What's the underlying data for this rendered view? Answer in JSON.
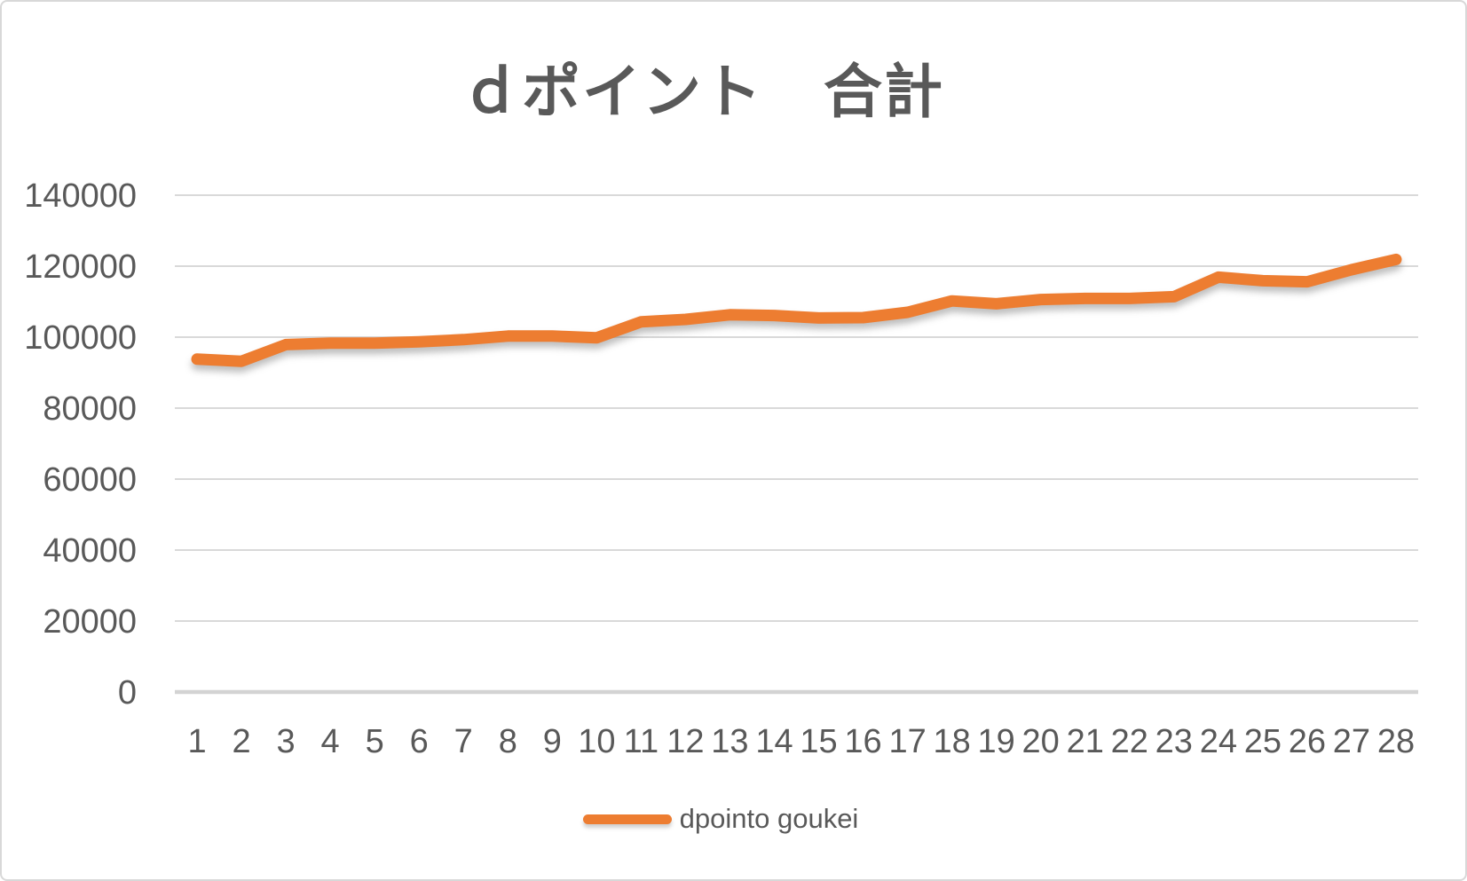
{
  "window": {
    "background_color": "#FFFFFF",
    "frame_border_color": "#D8D8D8"
  },
  "chart_data": {
    "type": "line",
    "title": "ｄポイント　合計",
    "title_color": "#595959",
    "categories": [
      "1",
      "2",
      "3",
      "4",
      "5",
      "6",
      "7",
      "8",
      "9",
      "10",
      "11",
      "12",
      "13",
      "14",
      "15",
      "16",
      "17",
      "18",
      "19",
      "20",
      "21",
      "22",
      "23",
      "24",
      "25",
      "26",
      "27",
      "28"
    ],
    "series": [
      {
        "name": "dpointo goukei",
        "color": "#ED7D31",
        "values": [
          93800,
          93200,
          97900,
          98300,
          98300,
          98700,
          99300,
          100300,
          100300,
          99800,
          104300,
          105000,
          106300,
          106100,
          105400,
          105500,
          107000,
          110200,
          109400,
          110600,
          110900,
          110900,
          111400,
          116900,
          115900,
          115600,
          119000,
          121900
        ]
      }
    ],
    "xlabel": "",
    "ylabel": "",
    "ylim": [
      0,
      140000
    ],
    "y_ticks": [
      0,
      20000,
      40000,
      60000,
      80000,
      100000,
      120000,
      140000
    ],
    "y_tick_labels": [
      "0",
      "20000",
      "40000",
      "60000",
      "80000",
      "100000",
      "120000",
      "140000"
    ],
    "grid": "horizontal",
    "gridline_color": "#D9D9D9",
    "axis_line_color": "#D3D3D3",
    "axis_text_color": "#595959",
    "legend_position": "bottom",
    "legend_entries": [
      "dpointo goukei"
    ]
  }
}
